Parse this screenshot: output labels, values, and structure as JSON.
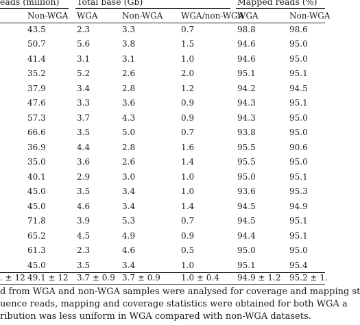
{
  "table": {
    "groups": [
      "eads (million)",
      "Total base (Gb)",
      "Mapped reads (%)"
    ],
    "columns": [
      "Non-WGA",
      "WGA",
      "Non-WGA",
      "WGA/non-WGA",
      "WGA",
      "Non-WGA"
    ],
    "rows": [
      [
        "43.5",
        "2.3",
        "3.3",
        "0.7",
        "98.8",
        "98.6"
      ],
      [
        "50.7",
        "5.6",
        "3.8",
        "1.5",
        "94.6",
        "95.0"
      ],
      [
        "41.4",
        "3.1",
        "3.1",
        "1.0",
        "94.6",
        "95.0"
      ],
      [
        "35.2",
        "5.2",
        "2.6",
        "2.0",
        "95.1",
        "95.1"
      ],
      [
        "37.9",
        "3.4",
        "2.8",
        "1.2",
        "94.2",
        "94.5"
      ],
      [
        "47.6",
        "3.3",
        "3.6",
        "0.9",
        "94.3",
        "95.1"
      ],
      [
        "57.3",
        "3.7",
        "4.3",
        "0.9",
        "94.3",
        "95.0"
      ],
      [
        "66.6",
        "3.5",
        "5.0",
        "0.7",
        "93.8",
        "95.0"
      ],
      [
        "36.9",
        "4.4",
        "2.8",
        "1.6",
        "95.5",
        "90.6"
      ],
      [
        "35.0",
        "3.6",
        "2.6",
        "1.4",
        "95.5",
        "95.0"
      ],
      [
        "40.1",
        "2.9",
        "3.0",
        "1.0",
        "95.0",
        "95.1"
      ],
      [
        "45.0",
        "3.5",
        "3.4",
        "1.0",
        "93.6",
        "95.3"
      ],
      [
        "45.0",
        "4.6",
        "3.4",
        "1.4",
        "94.5",
        "94.9"
      ],
      [
        "71.8",
        "3.9",
        "5.3",
        "0.7",
        "94.5",
        "95.1"
      ],
      [
        "65.2",
        "4.5",
        "4.9",
        "0.9",
        "94.4",
        "95.1"
      ],
      [
        "61.3",
        "2.3",
        "4.6",
        "0.5",
        "95.0",
        "95.0"
      ],
      [
        "45.0",
        "3.5",
        "3.4",
        "1.0",
        "95.1",
        "95.4"
      ]
    ],
    "summary": [
      ". ± 12",
      "49.1 ± 12",
      "3.7 ± 0.9",
      "3.7 ± 0.9",
      "1.0 ± 0.4",
      "94.9 ± 1.2",
      "95.2 ± 1."
    ]
  },
  "footnote": {
    "lines": [
      "d from WGA and non-WGA samples were analysed for coverage and mapping st",
      "uence reads, mapping and coverage statistics were obtained for both WGA a",
      "ribution was less uniform in WGA compared with non-WGA datasets."
    ]
  }
}
